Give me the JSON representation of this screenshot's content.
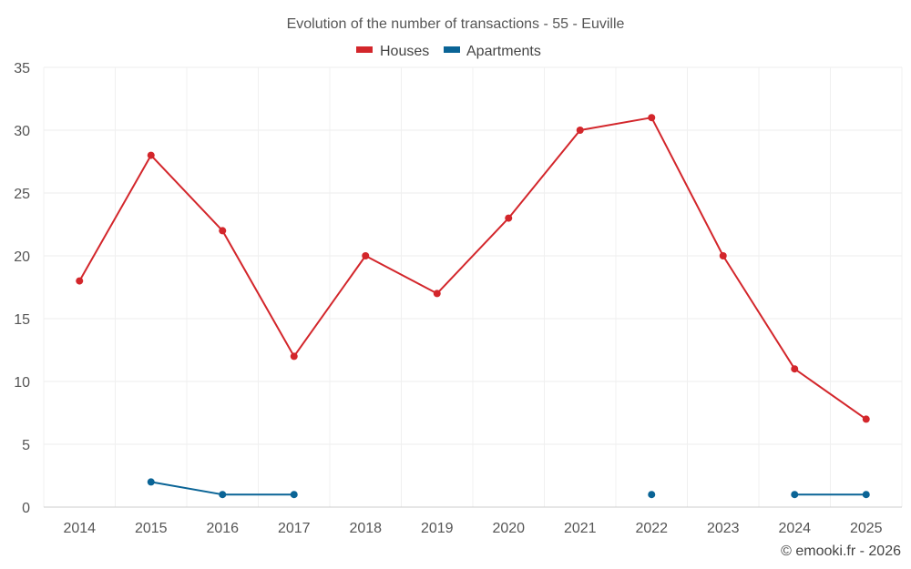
{
  "chart_data": {
    "type": "line",
    "title": "Evolution of the number of transactions - 55 - Euville",
    "xlabel": "",
    "ylabel": "",
    "ylim": [
      0,
      35
    ],
    "yticks": [
      0,
      5,
      10,
      15,
      20,
      25,
      30,
      35
    ],
    "categories": [
      "2014",
      "2015",
      "2016",
      "2017",
      "2018",
      "2019",
      "2020",
      "2021",
      "2022",
      "2023",
      "2024",
      "2025"
    ],
    "series": [
      {
        "name": "Houses",
        "color": "#d3262b",
        "values": [
          18,
          28,
          22,
          12,
          20,
          17,
          23,
          30,
          31,
          20,
          11,
          7
        ]
      },
      {
        "name": "Apartments",
        "color": "#0a6496",
        "values": [
          null,
          2,
          1,
          1,
          null,
          null,
          null,
          null,
          1,
          null,
          1,
          1
        ]
      }
    ],
    "grid": true,
    "legend": "top-center"
  },
  "credit": "© emooki.fr - 2026"
}
